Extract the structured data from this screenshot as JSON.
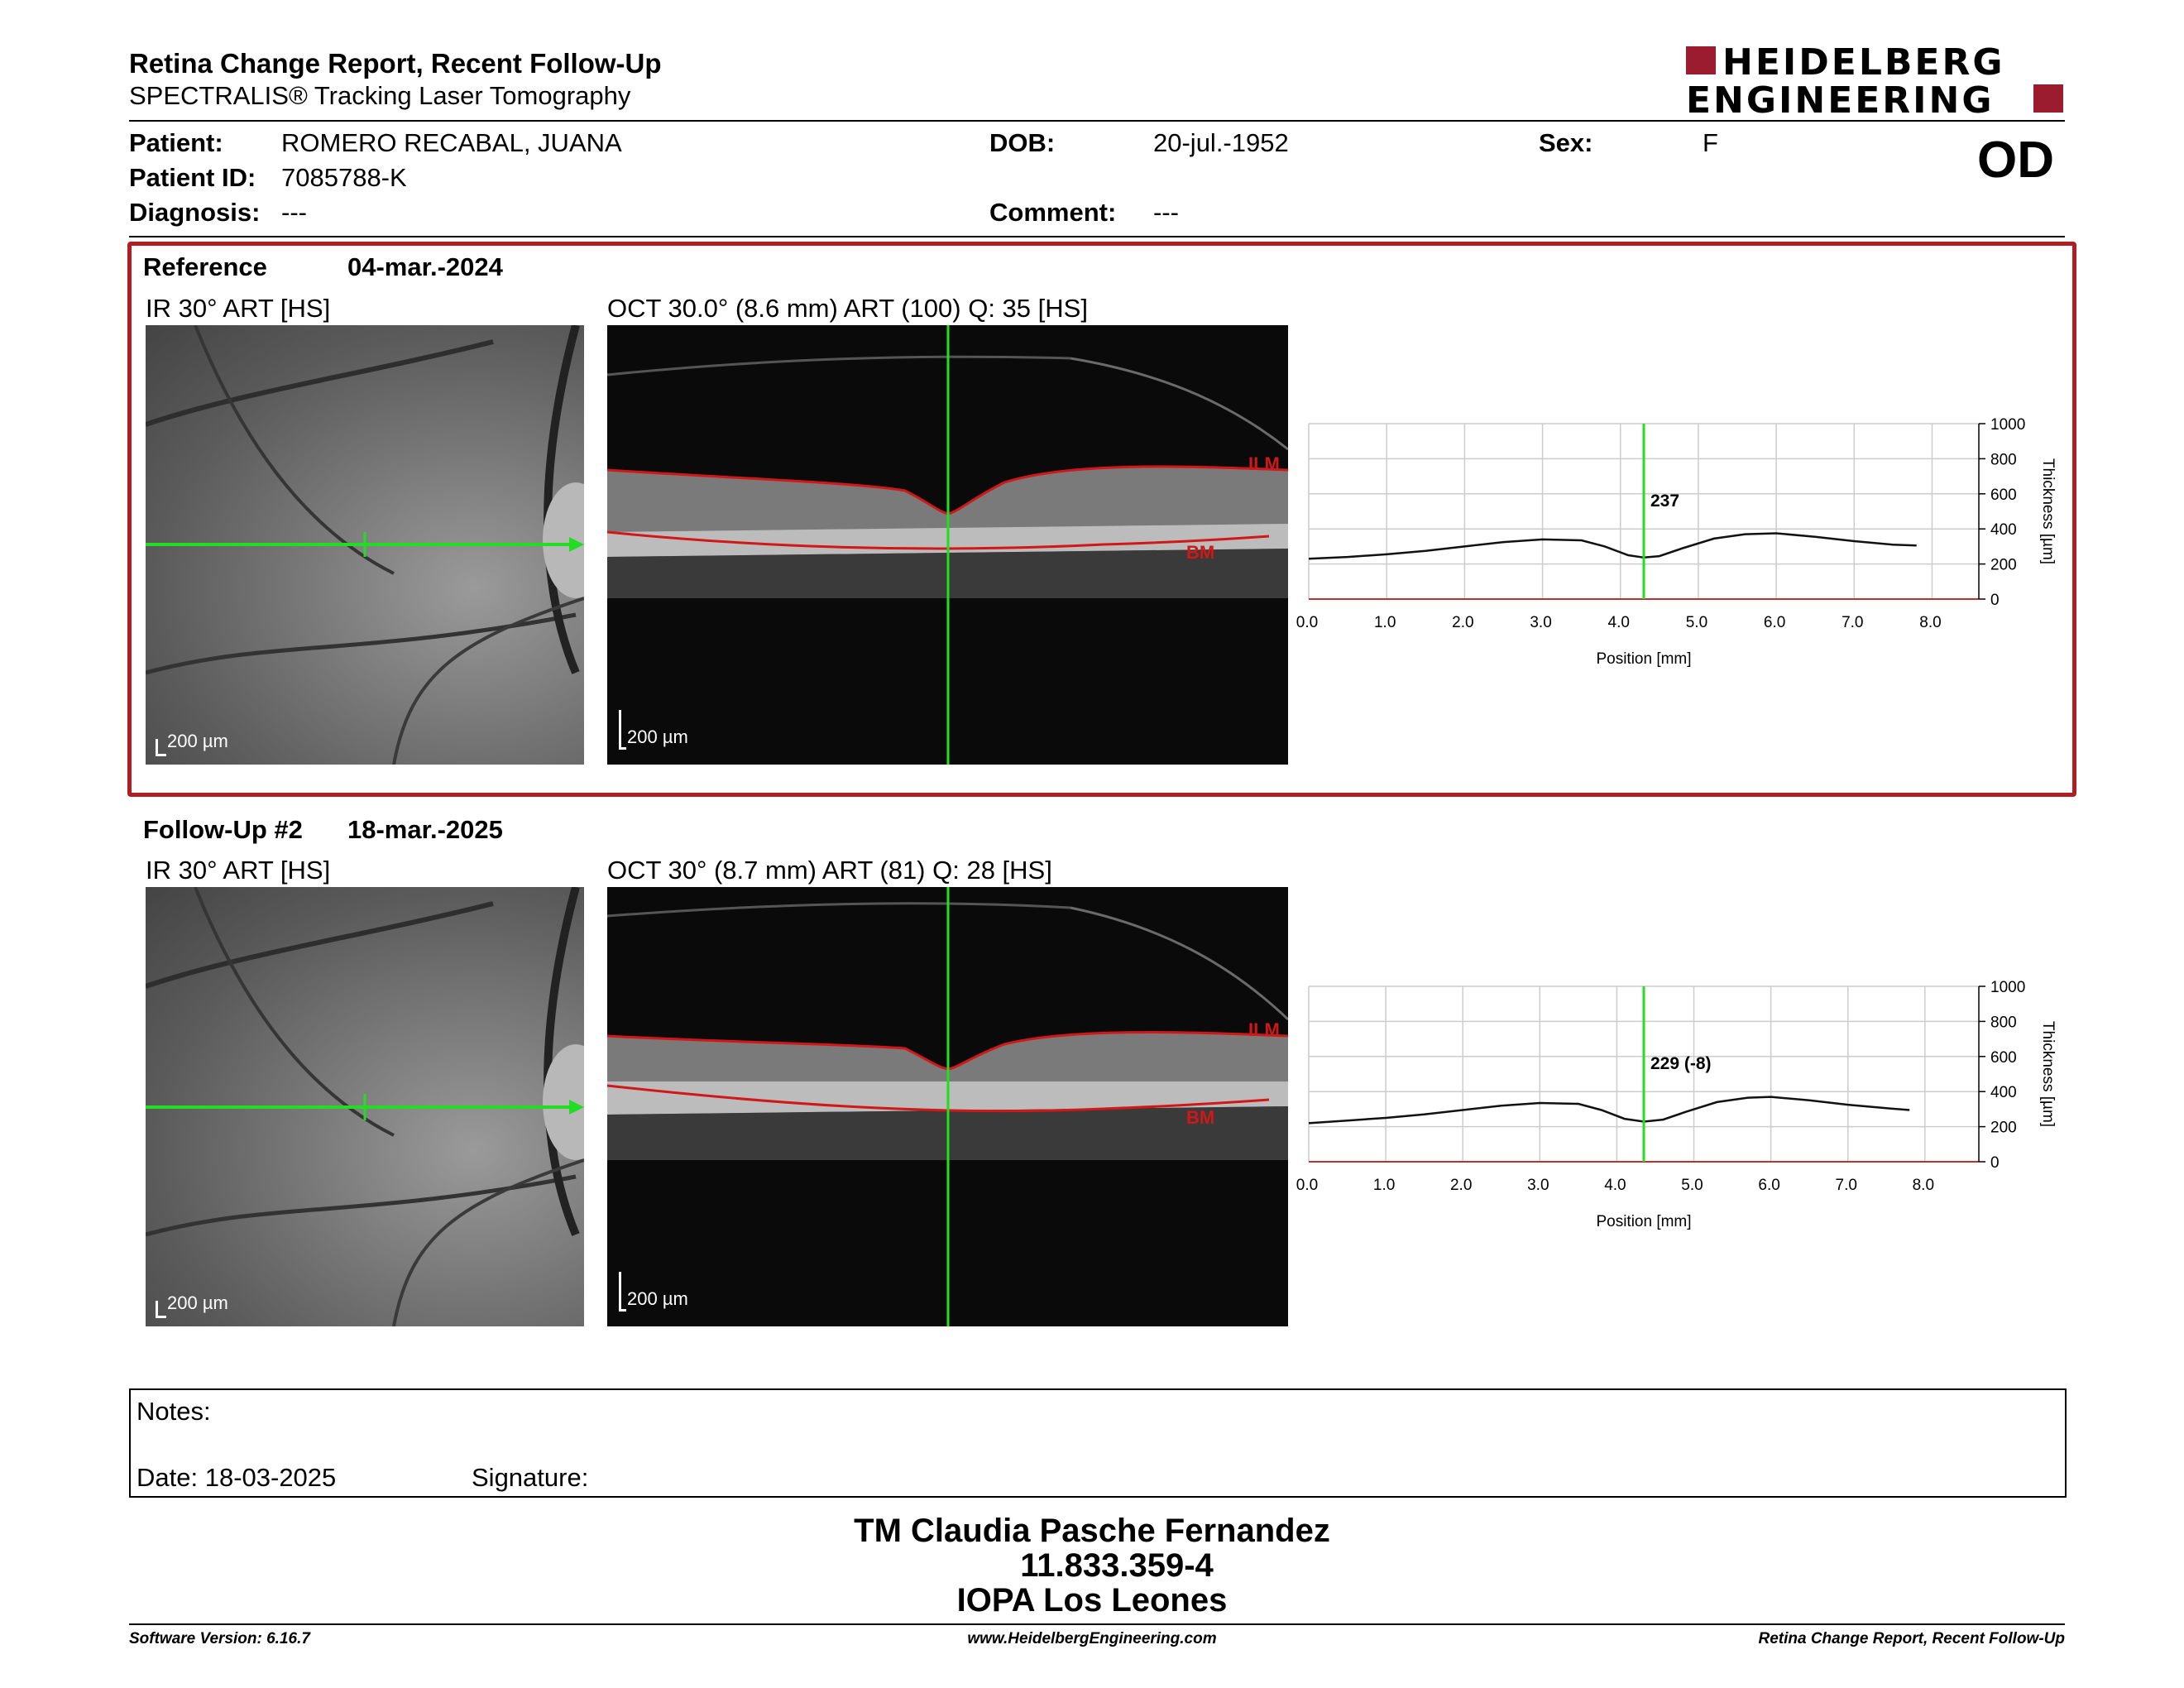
{
  "header": {
    "title": "Retina Change Report, Recent Follow-Up",
    "subtitle": "SPECTRALIS® Tracking Laser Tomography",
    "logo_line1": "HEIDELBERG",
    "logo_line2": "ENGINEERING",
    "eye": "OD"
  },
  "patient": {
    "patient_label": "Patient:",
    "patient_value": "ROMERO RECABAL, JUANA",
    "id_label": "Patient ID:",
    "id_value": "7085788-K",
    "diagnosis_label": "Diagnosis:",
    "diagnosis_value": "---",
    "dob_label": "DOB:",
    "dob_value": "20-jul.-1952",
    "comment_label": "Comment:",
    "comment_value": "---",
    "sex_label": "Sex:",
    "sex_value": "F"
  },
  "reference": {
    "label": "Reference",
    "date": "04-mar.-2024",
    "ir_title": "IR 30° ART [HS]",
    "oct_title": "OCT 30.0° (8.6 mm) ART (100) Q: 35 [HS]",
    "scale": "200 µm",
    "ilm": "ILM",
    "bm": "BM"
  },
  "followup": {
    "label": "Follow-Up #2",
    "date": "18-mar.-2025",
    "ir_title": "IR 30° ART [HS]",
    "oct_title": "OCT 30° (8.7 mm) ART (81) Q: 28 [HS]",
    "scale": "200 µm",
    "ilm": "ILM",
    "bm": "BM"
  },
  "chart_data": [
    {
      "type": "line",
      "xlabel": "Position [mm]",
      "ylabel": "Thickness [µm]",
      "xlim": [
        0,
        8.6
      ],
      "ylim": [
        0,
        1000
      ],
      "xticks": [
        "0.0",
        "1.0",
        "2.0",
        "3.0",
        "4.0",
        "5.0",
        "6.0",
        "7.0",
        "8.0"
      ],
      "yticks": [
        "0",
        "200",
        "400",
        "600",
        "800",
        "1000"
      ],
      "marker_x": 4.3,
      "marker_label": "237",
      "grid": true,
      "x": [
        0.0,
        0.5,
        1.0,
        1.5,
        2.0,
        2.5,
        3.0,
        3.5,
        3.8,
        4.1,
        4.3,
        4.5,
        4.8,
        5.2,
        5.6,
        6.0,
        6.5,
        7.0,
        7.5,
        7.8
      ],
      "values": [
        230,
        240,
        255,
        275,
        300,
        325,
        340,
        335,
        300,
        250,
        237,
        245,
        290,
        345,
        370,
        375,
        355,
        330,
        310,
        305
      ]
    },
    {
      "type": "line",
      "xlabel": "Position [mm]",
      "ylabel": "Thickness [µm]",
      "xlim": [
        0,
        8.7
      ],
      "ylim": [
        0,
        1000
      ],
      "xticks": [
        "0.0",
        "1.0",
        "2.0",
        "3.0",
        "4.0",
        "5.0",
        "6.0",
        "7.0",
        "8.0"
      ],
      "yticks": [
        "0",
        "200",
        "400",
        "600",
        "800",
        "1000"
      ],
      "marker_x": 4.35,
      "marker_label": "229 (-8)",
      "grid": true,
      "x": [
        0.0,
        0.5,
        1.0,
        1.5,
        2.0,
        2.5,
        3.0,
        3.5,
        3.8,
        4.1,
        4.35,
        4.6,
        4.9,
        5.3,
        5.7,
        6.0,
        6.5,
        7.0,
        7.5,
        7.8
      ],
      "values": [
        220,
        235,
        250,
        270,
        295,
        320,
        335,
        330,
        295,
        245,
        229,
        240,
        285,
        340,
        365,
        370,
        350,
        325,
        305,
        295
      ]
    }
  ],
  "notes": {
    "label": "Notes:",
    "date": "Date: 18-03-2025",
    "signature": "Signature:"
  },
  "signature_block": {
    "line1": "TM Claudia Pasche Fernandez",
    "line2": "11.833.359-4",
    "line3": "IOPA Los Leones"
  },
  "footer": {
    "left": "Software Version: 6.16.7",
    "center": "www.HeidelbergEngineering.com",
    "right": "Retina Change Report, Recent Follow-Up"
  },
  "colors": {
    "panel_border": "#b01e23",
    "scan_line": "#22dd22",
    "segment": "#d01818",
    "brand": "#9b1c2e"
  }
}
